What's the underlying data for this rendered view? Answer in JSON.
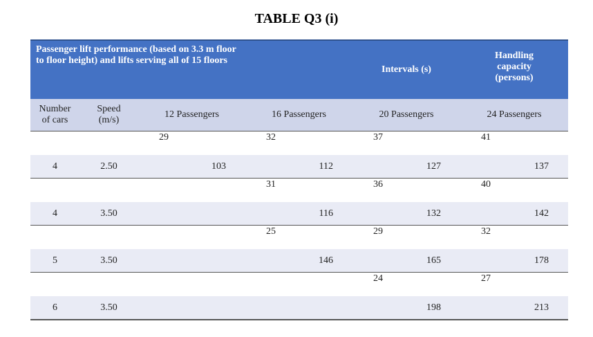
{
  "title": "TABLE Q3 (i)",
  "header": {
    "description": "Passenger lift performance (based on 3.3 m floor to floor height) and lifts serving all of 15 floors",
    "intervals": "Intervals (s)",
    "handling": "Handling capacity (persons)"
  },
  "columns": [
    "Number of cars",
    "Speed (m/s)",
    "12 Passengers",
    "16 Passengers",
    "20 Passengers",
    "24 Passengers"
  ],
  "groups": [
    {
      "intervals": [
        29,
        32,
        37,
        41
      ],
      "cars": 4,
      "speed": "2.50",
      "capacity": [
        103,
        112,
        127,
        137
      ]
    },
    {
      "intervals": [
        null,
        31,
        36,
        40
      ],
      "cars": 4,
      "speed": "3.50",
      "capacity": [
        null,
        116,
        132,
        142
      ]
    },
    {
      "intervals": [
        null,
        25,
        29,
        32
      ],
      "cars": 5,
      "speed": "3.50",
      "capacity": [
        null,
        146,
        165,
        178
      ]
    },
    {
      "intervals": [
        null,
        null,
        24,
        27
      ],
      "cars": 6,
      "speed": "3.50",
      "capacity": [
        null,
        null,
        198,
        213
      ]
    }
  ]
}
